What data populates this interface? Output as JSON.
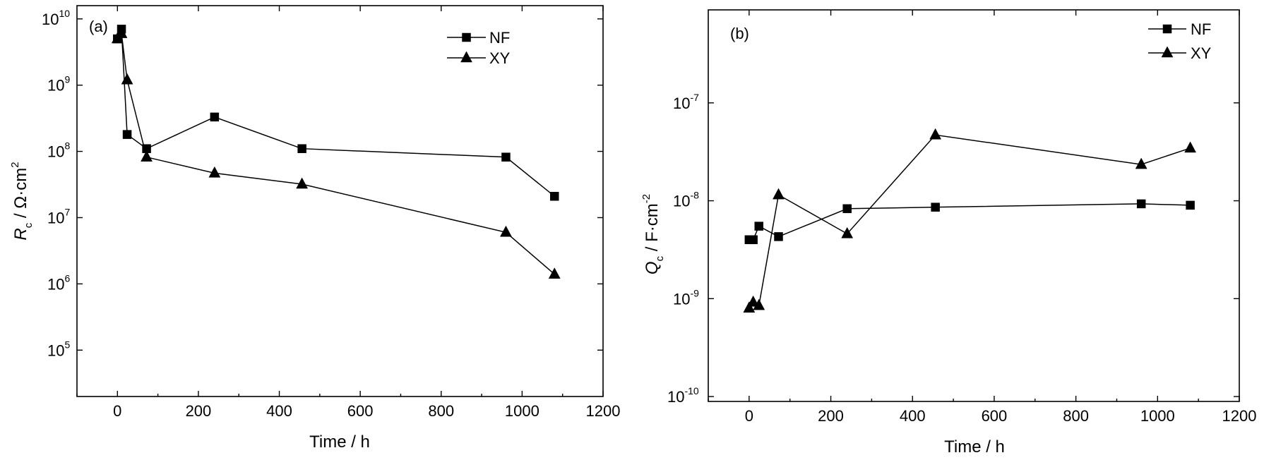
{
  "chart_data": [
    {
      "type": "line",
      "panel_label": "(a)",
      "xlabel": "Time / h",
      "ylabel": {
        "symbol": "R",
        "subscript": "c",
        "unit_text": " / Ω·cm",
        "unit_sup": "2"
      },
      "xlim": [
        -100,
        1200
      ],
      "xticks": [
        0,
        200,
        400,
        600,
        800,
        1000,
        1200
      ],
      "ylog": true,
      "ylim_log10": [
        4.3,
        10.2
      ],
      "yticks": [
        {
          "base": "10",
          "exp": "5",
          "v": 5
        },
        {
          "base": "10",
          "exp": "6",
          "v": 6
        },
        {
          "base": "10",
          "exp": "7",
          "v": 7
        },
        {
          "base": "10",
          "exp": "8",
          "v": 8
        },
        {
          "base": "10",
          "exp": "9",
          "v": 9
        },
        {
          "base": "10",
          "exp": "10",
          "v": 10
        }
      ],
      "legend_position": "top-right",
      "series": [
        {
          "name": "NF",
          "marker": "square",
          "x": [
            0,
            10,
            24,
            72,
            240,
            456,
            960,
            1080
          ],
          "y": [
            5000000000,
            7000000000,
            180000000,
            110000000,
            330000000,
            110000000,
            82000000,
            21000000
          ]
        },
        {
          "name": "XY",
          "marker": "triangle",
          "x": [
            0,
            10,
            24,
            72,
            240,
            456,
            960,
            1080
          ],
          "y": [
            5000000000,
            6000000000,
            1200000000,
            82000000,
            47000000,
            32000000,
            6000000,
            1400000
          ]
        }
      ]
    },
    {
      "type": "line",
      "panel_label": "(b)",
      "xlabel": "Time / h",
      "ylabel": {
        "symbol": "Q",
        "subscript": "c",
        "unit_text": " / F·cm",
        "unit_sup": "-2"
      },
      "xlim": [
        -100,
        1200
      ],
      "xticks": [
        0,
        200,
        400,
        600,
        800,
        1000,
        1200
      ],
      "ylog": true,
      "ylim_log10": [
        -10.05,
        -6.05
      ],
      "yticks": [
        {
          "base": "10",
          "exp": "-10",
          "v": -10
        },
        {
          "base": "10",
          "exp": "-9",
          "v": -9
        },
        {
          "base": "10",
          "exp": "-8",
          "v": -8
        },
        {
          "base": "10",
          "exp": "-7",
          "v": -7
        }
      ],
      "legend_position": "top-right",
      "series": [
        {
          "name": "NF",
          "marker": "square",
          "x": [
            0,
            10,
            24,
            72,
            240,
            456,
            960,
            1080
          ],
          "y": [
            4e-09,
            4e-09,
            5.5e-09,
            4.3e-09,
            8.3e-09,
            8.6e-09,
            9.3e-09,
            9e-09
          ]
        },
        {
          "name": "XY",
          "marker": "triangle",
          "x": [
            0,
            10,
            24,
            72,
            240,
            456,
            960,
            1080
          ],
          "y": [
            8e-10,
            9.2e-10,
            8.5e-10,
            1.15e-08,
            4.6e-09,
            4.7e-08,
            2.35e-08,
            3.45e-08
          ]
        }
      ]
    }
  ]
}
